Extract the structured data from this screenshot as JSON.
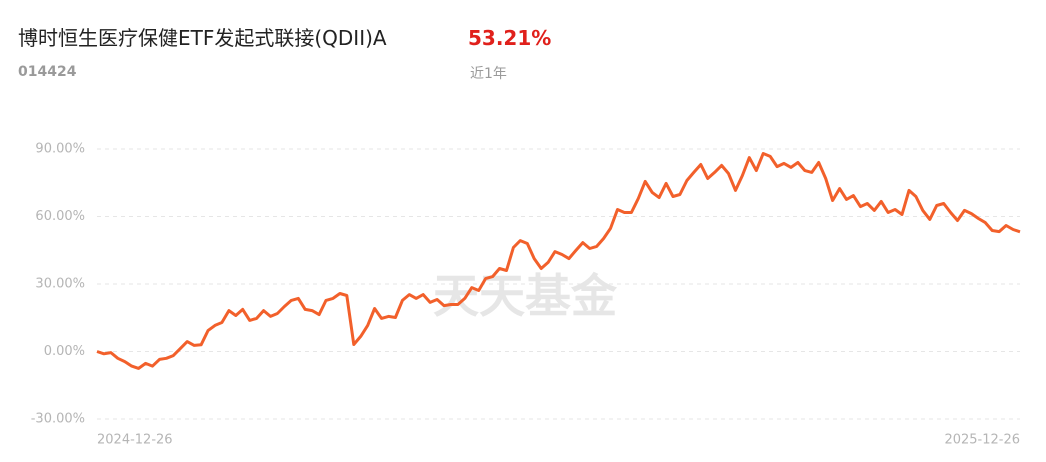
{
  "header": {
    "title": "博时恒生医疗保健ETF发起式联接(QDII)A",
    "return": "53.21%",
    "code": "014424",
    "period": "近1年"
  },
  "watermark": "天天基金",
  "chart_data": {
    "type": "line",
    "color": "#f2602b",
    "grid": true,
    "categories": [
      "2024-12-26",
      null,
      null,
      null,
      null,
      null,
      null,
      null,
      null,
      null,
      null,
      null,
      null,
      null,
      null,
      null,
      null,
      null,
      null,
      null,
      null,
      null,
      null,
      null,
      null,
      null,
      null,
      null,
      null,
      null,
      null,
      null,
      null,
      null,
      null,
      null,
      null,
      null,
      null,
      null,
      null,
      null,
      null,
      null,
      null,
      null,
      null,
      null,
      null,
      null,
      null,
      null,
      null,
      null,
      null,
      null,
      null,
      null,
      null,
      null,
      null,
      null,
      null,
      null,
      null,
      null,
      null,
      null,
      null,
      null,
      null,
      null,
      null,
      null,
      null,
      null,
      null,
      null,
      null,
      null,
      null,
      null,
      null,
      null,
      null,
      null,
      null,
      null,
      null,
      null,
      null,
      null,
      null,
      null,
      null,
      null,
      null,
      null,
      null,
      null,
      null,
      null,
      null,
      null,
      null,
      null,
      null,
      null,
      null,
      null,
      null,
      null,
      null,
      null,
      null,
      null,
      null,
      null,
      null,
      null,
      null,
      null,
      null,
      null,
      null,
      null,
      null,
      null,
      null,
      null,
      null,
      null,
      null,
      "2025-12-26"
    ],
    "values": [
      0,
      -1,
      -0.5,
      -3,
      -4.5,
      -6.5,
      -7.5,
      -5.3,
      -6.5,
      -3.5,
      -3,
      -1.8,
      1.3,
      4.4,
      2.7,
      3,
      9.3,
      11.6,
      12.9,
      18.2,
      16,
      18.7,
      13.8,
      14.7,
      18.2,
      15.6,
      16.9,
      20,
      22.7,
      23.6,
      18.7,
      18.2,
      16.4,
      22.7,
      23.6,
      25.8,
      24.9,
      3.1,
      6.7,
      11.6,
      19.1,
      14.7,
      15.6,
      15.1,
      22.7,
      25.3,
      23.6,
      25.3,
      21.8,
      23.1,
      20.4,
      20.9,
      20.9,
      23.6,
      28.4,
      27.1,
      32.4,
      33.3,
      36.9,
      36,
      46.2,
      49.3,
      48,
      41.3,
      36.9,
      39.6,
      44.4,
      43.1,
      41.3,
      44.9,
      48.4,
      45.8,
      46.7,
      50.2,
      54.7,
      63.1,
      61.8,
      61.8,
      68,
      75.6,
      70.7,
      68.4,
      74.7,
      68.9,
      69.8,
      76,
      79.6,
      83.1,
      76.9,
      79.6,
      82.7,
      79.1,
      71.6,
      78.2,
      86.2,
      80.4,
      88,
      86.7,
      82.2,
      83.6,
      81.8,
      84,
      80.4,
      79.6,
      84,
      76.9,
      67.1,
      72.4,
      67.6,
      69.3,
      64.4,
      65.8,
      62.7,
      66.7,
      61.8,
      63.1,
      60.9,
      71.6,
      68.9,
      62.7,
      58.7,
      64.9,
      65.8,
      61.8,
      58.2,
      62.7,
      61.3,
      59.1,
      57.3,
      53.8,
      53.3,
      56,
      54.2,
      53.2
    ],
    "ylim": [
      -34,
      94
    ],
    "yticks": [
      {
        "value": -30,
        "label": "-30.00%"
      },
      {
        "value": 0,
        "label": "0.00%"
      },
      {
        "value": 30,
        "label": "30.00%"
      },
      {
        "value": 60,
        "label": "60.00%"
      },
      {
        "value": 90,
        "label": "90.00%"
      }
    ]
  }
}
